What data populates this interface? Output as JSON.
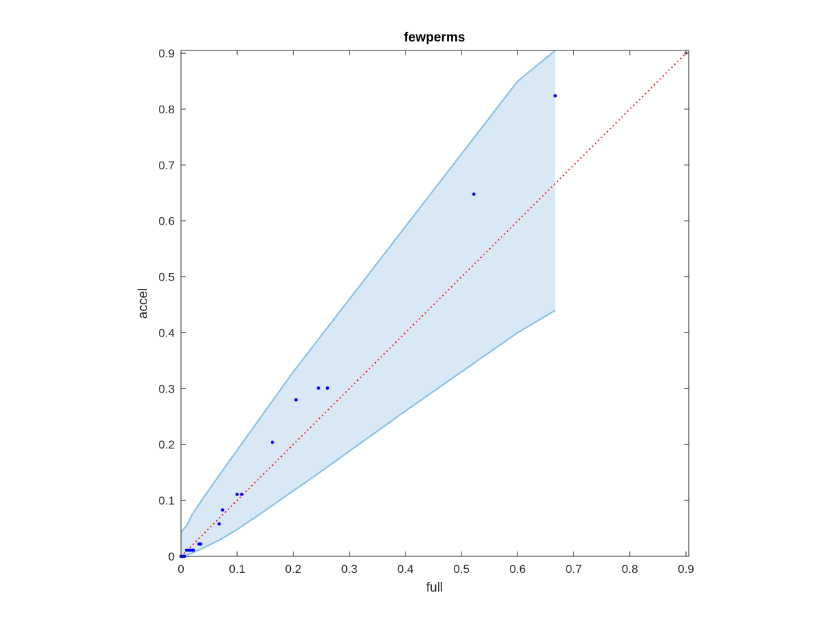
{
  "chart_data": {
    "type": "scatter",
    "title": "fewperms",
    "xlabel": "full",
    "ylabel": "accel",
    "xlim": [
      0,
      0.905
    ],
    "ylim": [
      0,
      0.905
    ],
    "xticks": [
      0,
      0.1,
      0.2,
      0.3,
      0.4,
      0.5,
      0.6,
      0.7,
      0.8,
      0.9
    ],
    "yticks": [
      0,
      0.1,
      0.2,
      0.3,
      0.4,
      0.5,
      0.6,
      0.7,
      0.8,
      0.9
    ],
    "xtick_labels": [
      "0",
      "0.1",
      "0.2",
      "0.3",
      "0.4",
      "0.5",
      "0.6",
      "0.7",
      "0.8",
      "0.9"
    ],
    "ytick_labels": [
      "0",
      "0.1",
      "0.2",
      "0.3",
      "0.4",
      "0.5",
      "0.6",
      "0.7",
      "0.8",
      "0.9"
    ],
    "grid": false,
    "points": {
      "color": "#0000ff",
      "x": [
        0.0,
        0.002,
        0.004,
        0.006,
        0.01,
        0.013,
        0.016,
        0.02,
        0.022,
        0.032,
        0.035,
        0.068,
        0.074,
        0.1,
        0.108,
        0.163,
        0.205,
        0.245,
        0.261,
        0.522,
        0.667
      ],
      "y": [
        0.0,
        0.0,
        0.0,
        0.0,
        0.011,
        0.011,
        0.011,
        0.011,
        0.011,
        0.022,
        0.022,
        0.058,
        0.083,
        0.111,
        0.111,
        0.204,
        0.28,
        0.301,
        0.301,
        0.648,
        0.824
      ]
    },
    "reference_line": {
      "style": "dotted",
      "color": "#ff0000",
      "x": [
        0,
        0.905
      ],
      "y": [
        0,
        0.905
      ]
    },
    "band": {
      "fill": "#d9e8f5",
      "edge": "#80bde6",
      "x": [
        0,
        0.01,
        0.02,
        0.04,
        0.07,
        0.1,
        0.15,
        0.2,
        0.25,
        0.3,
        0.4,
        0.5,
        0.6,
        0.667
      ],
      "upper": [
        0.043,
        0.055,
        0.075,
        0.105,
        0.148,
        0.19,
        0.26,
        0.33,
        0.395,
        0.46,
        0.59,
        0.72,
        0.85,
        0.905
      ],
      "lower": [
        0.0,
        0.002,
        0.006,
        0.015,
        0.03,
        0.048,
        0.082,
        0.117,
        0.152,
        0.188,
        0.26,
        0.33,
        0.4,
        0.44
      ]
    }
  }
}
